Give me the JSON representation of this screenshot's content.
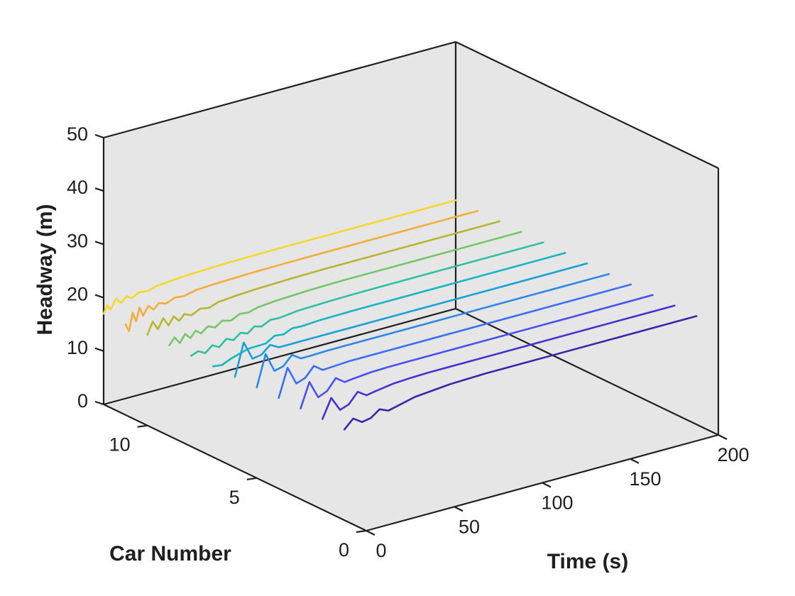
{
  "chart_data": {
    "type": "line",
    "subtype": "3d-waterfall",
    "title": "",
    "xlabel": "Time (s)",
    "ylabel": "Car Number",
    "zlabel": "Headway (m)",
    "xlim": [
      0,
      200
    ],
    "ylim": [
      0,
      12
    ],
    "zlim": [
      0,
      50
    ],
    "xticks": [
      {
        "v": 0,
        "label": "0"
      },
      {
        "v": 50,
        "label": "50"
      },
      {
        "v": 100,
        "label": "100"
      },
      {
        "v": 150,
        "label": "150"
      },
      {
        "v": 200,
        "label": "200"
      }
    ],
    "yticks": [
      {
        "v": 0,
        "label": "0"
      },
      {
        "v": 5,
        "label": "5"
      },
      {
        "v": 10,
        "label": "10"
      }
    ],
    "zticks": [
      {
        "v": 0,
        "label": "0"
      },
      {
        "v": 10,
        "label": "10"
      },
      {
        "v": 20,
        "label": "20"
      },
      {
        "v": 30,
        "label": "30"
      },
      {
        "v": 40,
        "label": "40"
      },
      {
        "v": 50,
        "label": "50"
      }
    ],
    "grid": false,
    "pane_color": "#e6e6e6",
    "series": [
      {
        "car": 1,
        "color": "#3e26a8",
        "points": [
          [
            0,
            17.0
          ],
          [
            5,
            18.6
          ],
          [
            10,
            17.5
          ],
          [
            15,
            17.8
          ],
          [
            20,
            19.0
          ],
          [
            25,
            18.3
          ],
          [
            30,
            18.7
          ],
          [
            40,
            19.5
          ],
          [
            50,
            19.8
          ],
          [
            60,
            20.1
          ],
          [
            70,
            20.2
          ],
          [
            80,
            20.3
          ],
          [
            100,
            20.3
          ],
          [
            150,
            20.3
          ],
          [
            200,
            20.3
          ]
        ]
      },
      {
        "car": 2,
        "color": "#4433d0",
        "points": [
          [
            0,
            17.0
          ],
          [
            5,
            20.5
          ],
          [
            10,
            17.8
          ],
          [
            15,
            18.4
          ],
          [
            20,
            20.3
          ],
          [
            25,
            19.2
          ],
          [
            30,
            19.5
          ],
          [
            40,
            20.0
          ],
          [
            50,
            20.2
          ],
          [
            60,
            20.3
          ],
          [
            80,
            20.3
          ],
          [
            100,
            20.3
          ],
          [
            150,
            20.3
          ],
          [
            200,
            20.3
          ]
        ]
      },
      {
        "car": 3,
        "color": "#4651f0",
        "points": [
          [
            0,
            17.0
          ],
          [
            5,
            21.5
          ],
          [
            10,
            18.2
          ],
          [
            15,
            18.9
          ],
          [
            20,
            20.9
          ],
          [
            25,
            19.7
          ],
          [
            30,
            19.9
          ],
          [
            40,
            20.2
          ],
          [
            50,
            20.3
          ],
          [
            60,
            20.3
          ],
          [
            100,
            20.3
          ],
          [
            150,
            20.3
          ],
          [
            200,
            20.3
          ]
        ]
      },
      {
        "car": 4,
        "color": "#3a6ef5",
        "points": [
          [
            0,
            17.0
          ],
          [
            5,
            22.2
          ],
          [
            10,
            18.8
          ],
          [
            15,
            19.4
          ],
          [
            20,
            21.2
          ],
          [
            25,
            20.0
          ],
          [
            30,
            20.1
          ],
          [
            40,
            20.3
          ],
          [
            50,
            20.3
          ],
          [
            100,
            20.3
          ],
          [
            150,
            20.3
          ],
          [
            200,
            20.3
          ]
        ]
      },
      {
        "car": 5,
        "color": "#2c88e6",
        "points": [
          [
            0,
            17.0
          ],
          [
            5,
            22.8
          ],
          [
            10,
            19.2
          ],
          [
            15,
            19.6
          ],
          [
            20,
            21.3
          ],
          [
            25,
            20.2
          ],
          [
            30,
            20.2
          ],
          [
            40,
            20.3
          ],
          [
            50,
            20.3
          ],
          [
            100,
            20.3
          ],
          [
            150,
            20.3
          ],
          [
            200,
            20.3
          ]
        ]
      },
      {
        "car": 6,
        "color": "#1ba0d6",
        "points": [
          [
            0,
            17.0
          ],
          [
            5,
            23.0
          ],
          [
            10,
            19.5
          ],
          [
            15,
            19.8
          ],
          [
            20,
            21.2
          ],
          [
            25,
            20.3
          ],
          [
            30,
            20.3
          ],
          [
            40,
            20.3
          ],
          [
            100,
            20.3
          ],
          [
            150,
            20.3
          ],
          [
            200,
            20.3
          ]
        ]
      },
      {
        "car": 7,
        "color": "#17b5c4",
        "points": [
          [
            0,
            17.0
          ],
          [
            5,
            16.8
          ],
          [
            10,
            17.5
          ],
          [
            20,
            18.5
          ],
          [
            30,
            18.6
          ],
          [
            35,
            19.6
          ],
          [
            40,
            19.4
          ],
          [
            45,
            20.1
          ],
          [
            50,
            20.0
          ],
          [
            60,
            20.2
          ],
          [
            80,
            20.3
          ],
          [
            100,
            20.3
          ],
          [
            150,
            20.3
          ],
          [
            200,
            20.3
          ]
        ]
      },
      {
        "car": 8,
        "color": "#2fc0a2",
        "points": [
          [
            0,
            17.0
          ],
          [
            4,
            17.5
          ],
          [
            8,
            16.8
          ],
          [
            12,
            17.9
          ],
          [
            16,
            17.2
          ],
          [
            20,
            18.4
          ],
          [
            24,
            17.8
          ],
          [
            28,
            18.8
          ],
          [
            32,
            18.3
          ],
          [
            36,
            19.3
          ],
          [
            40,
            18.9
          ],
          [
            45,
            19.7
          ],
          [
            50,
            19.6
          ],
          [
            60,
            20.0
          ],
          [
            80,
            20.2
          ],
          [
            100,
            20.3
          ],
          [
            150,
            20.3
          ],
          [
            200,
            20.3
          ]
        ]
      },
      {
        "car": 9,
        "color": "#73c66a",
        "points": [
          [
            0,
            17.0
          ],
          [
            3,
            18.2
          ],
          [
            6,
            16.9
          ],
          [
            9,
            18.3
          ],
          [
            12,
            17.3
          ],
          [
            15,
            18.4
          ],
          [
            18,
            17.6
          ],
          [
            22,
            18.6
          ],
          [
            26,
            18.0
          ],
          [
            30,
            18.9
          ],
          [
            35,
            18.5
          ],
          [
            40,
            19.3
          ],
          [
            45,
            19.1
          ],
          [
            50,
            19.6
          ],
          [
            60,
            19.9
          ],
          [
            80,
            20.2
          ],
          [
            100,
            20.3
          ],
          [
            150,
            20.3
          ],
          [
            200,
            20.3
          ]
        ]
      },
      {
        "car": 10,
        "color": "#b8b532",
        "points": [
          [
            0,
            17.0
          ],
          [
            3,
            19.2
          ],
          [
            6,
            17.5
          ],
          [
            9,
            19.3
          ],
          [
            12,
            17.7
          ],
          [
            15,
            19.1
          ],
          [
            18,
            18.0
          ],
          [
            21,
            19.0
          ],
          [
            25,
            18.4
          ],
          [
            30,
            19.2
          ],
          [
            35,
            18.9
          ],
          [
            40,
            19.5
          ],
          [
            50,
            19.8
          ],
          [
            60,
            20.0
          ],
          [
            80,
            20.2
          ],
          [
            100,
            20.3
          ],
          [
            150,
            20.3
          ],
          [
            200,
            20.3
          ]
        ]
      },
      {
        "car": 11,
        "color": "#f4ad3c",
        "points": [
          [
            0,
            17.0
          ],
          [
            2,
            15.5
          ],
          [
            4,
            18.8
          ],
          [
            6,
            17.0
          ],
          [
            8,
            19.4
          ],
          [
            10,
            17.7
          ],
          [
            13,
            19.3
          ],
          [
            16,
            18.3
          ],
          [
            19,
            19.3
          ],
          [
            23,
            18.8
          ],
          [
            28,
            19.5
          ],
          [
            33,
            19.3
          ],
          [
            40,
            19.8
          ],
          [
            50,
            20.0
          ],
          [
            70,
            20.2
          ],
          [
            100,
            20.3
          ],
          [
            150,
            20.3
          ],
          [
            200,
            20.3
          ]
        ]
      },
      {
        "car": 12,
        "color": "#f5d82b",
        "points": [
          [
            0,
            17.0
          ],
          [
            2,
            18.4
          ],
          [
            4,
            17.4
          ],
          [
            7,
            19.2
          ],
          [
            10,
            18.1
          ],
          [
            13,
            19.1
          ],
          [
            16,
            18.5
          ],
          [
            20,
            19.2
          ],
          [
            25,
            19.0
          ],
          [
            30,
            19.5
          ],
          [
            40,
            19.8
          ],
          [
            50,
            20.0
          ],
          [
            70,
            20.2
          ],
          [
            100,
            20.3
          ],
          [
            150,
            20.3
          ],
          [
            200,
            20.3
          ]
        ]
      }
    ]
  }
}
